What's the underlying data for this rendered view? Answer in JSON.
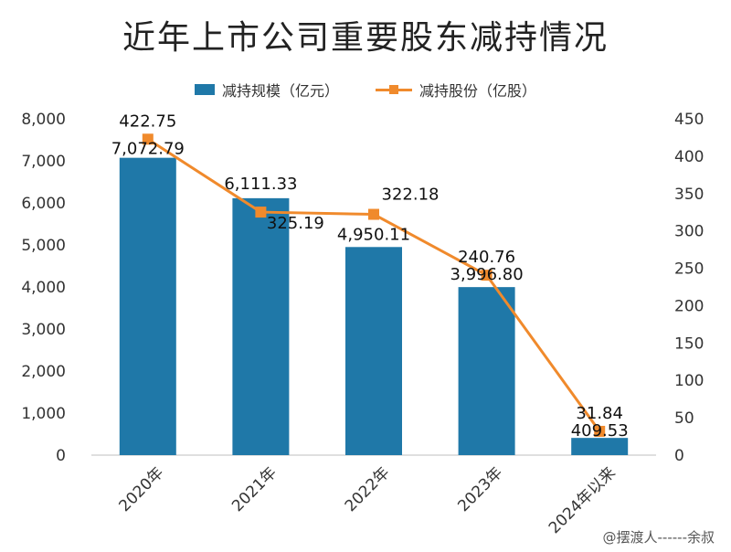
{
  "chart_data": {
    "type": "bar",
    "title": "近年上市公司重要股东减持情况",
    "categories": [
      "2020年",
      "2021年",
      "2022年",
      "2023年",
      "2024年以来"
    ],
    "series": [
      {
        "name": "减持规模（亿元）",
        "type": "bar",
        "axis": "left",
        "color": "#1f78a8",
        "values": [
          7072.79,
          6111.33,
          4950.11,
          3996.8,
          409.53
        ],
        "labels": [
          "7,072.79",
          "6,111.33",
          "4,950.11",
          "3,996.80",
          "409.53"
        ]
      },
      {
        "name": "减持股份（亿股）",
        "type": "line",
        "axis": "right",
        "color": "#f08a2c",
        "values": [
          422.75,
          325.19,
          322.18,
          240.76,
          31.84
        ],
        "labels": [
          "422.75",
          "325.19",
          "322.18",
          "240.76",
          "31.84"
        ]
      }
    ],
    "ylim_left": [
      0,
      8000
    ],
    "ylim_right": [
      0,
      450
    ],
    "yticks_left": [
      "0",
      "1,000",
      "2,000",
      "3,000",
      "4,000",
      "5,000",
      "6,000",
      "7,000",
      "8,000"
    ],
    "yticks_right": [
      "0",
      "50",
      "100",
      "150",
      "200",
      "250",
      "300",
      "350",
      "400",
      "450"
    ],
    "legend_position": "top-center",
    "grid": false
  },
  "watermark": "@摆渡人------余叔"
}
